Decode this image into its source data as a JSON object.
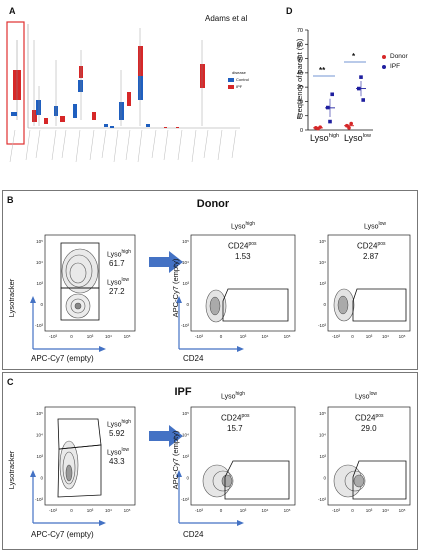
{
  "panel_a": {
    "letter": "A",
    "caption": "Adams et al",
    "legend": {
      "title": "disease",
      "items": [
        "Control",
        "IPF"
      ],
      "colors": [
        "#1f5fbf",
        "#d62728"
      ]
    }
  },
  "panel_d": {
    "letter": "D",
    "ylabel": "Frequency of parent (%)",
    "yticks": [
      "0",
      "10",
      "20",
      "30",
      "40",
      "50",
      "60",
      "70"
    ],
    "xgroups": [
      {
        "base": "Lyso",
        "sup": "high"
      },
      {
        "base": "Lyso",
        "sup": "low"
      }
    ],
    "significance": [
      "**",
      "*"
    ],
    "legend": [
      {
        "name": "Donor",
        "color": "#d62728"
      },
      {
        "name": "IPF",
        "color": "#1f1f9f"
      }
    ]
  },
  "chart_data": {
    "type": "scatter",
    "ylabel": "Frequency of parent (%)",
    "ylim": [
      0,
      70
    ],
    "categories": [
      "Lysohigh",
      "Lysolow"
    ],
    "series": [
      {
        "name": "Donor",
        "values": [
          [
            1.5,
            1.0,
            2.0
          ],
          [
            3.0,
            1.5,
            4.5
          ]
        ],
        "mean": [
          1.5,
          3.0
        ]
      },
      {
        "name": "IPF",
        "values": [
          [
            15.7,
            5.9,
            25.0
          ],
          [
            29.0,
            37.0,
            21.0
          ]
        ],
        "mean": [
          15.5,
          29.0
        ]
      }
    ]
  },
  "panel_b": {
    "letter": "B",
    "title": "Donor",
    "gate_high": {
      "base": "Lyso",
      "sup": "high",
      "value": "61.7"
    },
    "gate_low": {
      "base": "Lyso",
      "sup": "low",
      "value": "27.2"
    },
    "col_high": {
      "base": "Lyso",
      "sup": "high"
    },
    "col_low": {
      "base": "Lyso",
      "sup": "low"
    },
    "cd24_high": {
      "base": "CD24",
      "sup": "pos",
      "value": "1.53"
    },
    "cd24_low": {
      "base": "CD24",
      "sup": "pos",
      "value": "2.87"
    },
    "y1": "Lysotracker",
    "x1": "APC-Cy7 (empty)",
    "y2": "APC-Cy7 (empty)",
    "x2": "CD24"
  },
  "panel_c": {
    "letter": "C",
    "title": "IPF",
    "gate_high": {
      "base": "Lyso",
      "sup": "high",
      "value": "5.92"
    },
    "gate_low": {
      "base": "Lyso",
      "sup": "low",
      "value": "43.3"
    },
    "col_high": {
      "base": "Lyso",
      "sup": "high"
    },
    "col_low": {
      "base": "Lyso",
      "sup": "low"
    },
    "cd24_high": {
      "base": "CD24",
      "sup": "pos",
      "value": "15.7"
    },
    "cd24_low": {
      "base": "CD24",
      "sup": "pos",
      "value": "29.0"
    },
    "y1": "Lysotracker",
    "x1": "APC-Cy7 (empty)",
    "y2": "APC-Cy7 (empty)",
    "x2": "CD24"
  },
  "axis_ticks": {
    "y": [
      "10⁵",
      "10⁴",
      "10³",
      "0",
      "-10³"
    ],
    "x": [
      "-10³",
      "0",
      "10³",
      "10⁴",
      "10⁵"
    ]
  },
  "colors": {
    "arrow": "#4472c4",
    "axis_arrow": "#4472c4"
  }
}
